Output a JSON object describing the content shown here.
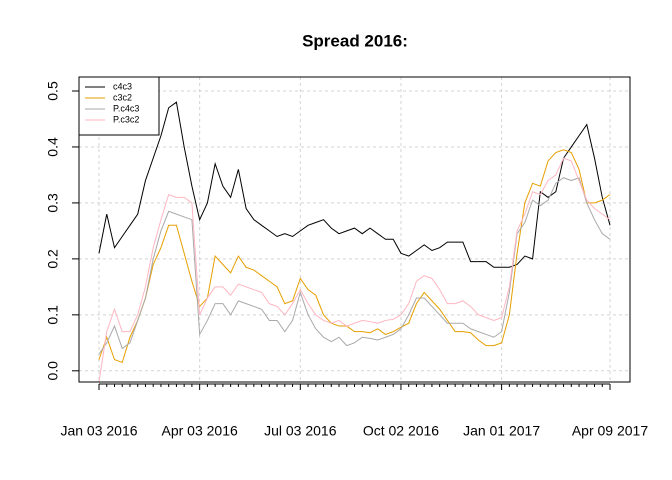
{
  "chart_data": {
    "type": "line",
    "title": "Spread 2016:",
    "categories": [
      "Jan 03 2016",
      null,
      null,
      null,
      null,
      null,
      null,
      null,
      null,
      null,
      null,
      null,
      null,
      "Apr 03 2016",
      null,
      null,
      null,
      null,
      null,
      null,
      null,
      null,
      null,
      null,
      null,
      null,
      "Jul 03 2016",
      null,
      null,
      null,
      null,
      null,
      null,
      null,
      null,
      null,
      null,
      null,
      null,
      "Oct 02 2016",
      null,
      null,
      null,
      null,
      null,
      null,
      null,
      null,
      null,
      null,
      null,
      null,
      "Jan 01 2017",
      null,
      null,
      null,
      null,
      null,
      null,
      null,
      null,
      null,
      null,
      null,
      null,
      null,
      "Apr 09 2017"
    ],
    "series": [
      {
        "name": "c4c3",
        "color": "#000000",
        "values": [
          0.21,
          0.28,
          0.22,
          0.24,
          0.26,
          0.28,
          0.34,
          0.38,
          0.42,
          0.47,
          0.48,
          0.4,
          0.33,
          0.27,
          0.3,
          0.37,
          0.33,
          0.31,
          0.36,
          0.29,
          0.27,
          0.26,
          0.25,
          0.24,
          0.245,
          0.24,
          0.25,
          0.26,
          0.265,
          0.27,
          0.255,
          0.245,
          0.25,
          0.255,
          0.245,
          0.255,
          0.245,
          0.235,
          0.235,
          0.21,
          0.205,
          0.215,
          0.225,
          0.215,
          0.22,
          0.23,
          0.23,
          0.23,
          0.195,
          0.195,
          0.195,
          0.185,
          0.185,
          0.185,
          0.19,
          0.205,
          0.2,
          0.32,
          0.31,
          0.32,
          0.38,
          0.4,
          0.42,
          0.44,
          0.38,
          0.31,
          0.26
        ]
      },
      {
        "name": "c3c2",
        "color": "#e69f00",
        "values": [
          0.02,
          0.06,
          0.02,
          0.015,
          0.06,
          0.09,
          0.13,
          0.19,
          0.22,
          0.26,
          0.26,
          0.21,
          0.16,
          0.115,
          0.13,
          0.205,
          0.19,
          0.175,
          0.205,
          0.185,
          0.18,
          0.17,
          0.16,
          0.15,
          0.12,
          0.125,
          0.165,
          0.145,
          0.135,
          0.1,
          0.085,
          0.08,
          0.08,
          0.07,
          0.07,
          0.068,
          0.075,
          0.065,
          0.07,
          0.078,
          0.085,
          0.12,
          0.14,
          0.125,
          0.11,
          0.09,
          0.07,
          0.07,
          0.068,
          0.055,
          0.045,
          0.045,
          0.05,
          0.1,
          0.21,
          0.3,
          0.335,
          0.33,
          0.375,
          0.39,
          0.395,
          0.39,
          0.36,
          0.3,
          0.3,
          0.305,
          0.315
        ]
      },
      {
        "name": "P.c4c3",
        "color": "#a9a9a9",
        "values": [
          0.03,
          0.05,
          0.08,
          0.04,
          0.05,
          0.09,
          0.13,
          0.2,
          0.25,
          0.285,
          0.28,
          0.275,
          0.27,
          0.065,
          0.09,
          0.12,
          0.12,
          0.1,
          0.125,
          0.12,
          0.115,
          0.11,
          0.09,
          0.09,
          0.07,
          0.09,
          0.14,
          0.1,
          0.075,
          0.06,
          0.052,
          0.06,
          0.045,
          0.05,
          0.06,
          0.058,
          0.055,
          0.06,
          0.065,
          0.075,
          0.1,
          0.13,
          0.13,
          0.115,
          0.1,
          0.085,
          0.085,
          0.085,
          0.075,
          0.07,
          0.065,
          0.06,
          0.07,
          0.14,
          0.245,
          0.265,
          0.305,
          0.295,
          0.305,
          0.335,
          0.345,
          0.34,
          0.345,
          0.3,
          0.27,
          0.245,
          0.235
        ]
      },
      {
        "name": "P.c3c2",
        "color": "#ffb6c1",
        "values": [
          -0.02,
          0.07,
          0.11,
          0.07,
          0.07,
          0.1,
          0.15,
          0.22,
          0.27,
          0.315,
          0.31,
          0.31,
          0.3,
          0.1,
          0.13,
          0.15,
          0.15,
          0.135,
          0.155,
          0.15,
          0.145,
          0.14,
          0.12,
          0.115,
          0.1,
          0.12,
          0.145,
          0.12,
          0.1,
          0.09,
          0.085,
          0.09,
          0.08,
          0.085,
          0.09,
          0.088,
          0.085,
          0.09,
          0.092,
          0.1,
          0.12,
          0.16,
          0.17,
          0.165,
          0.145,
          0.12,
          0.12,
          0.125,
          0.115,
          0.1,
          0.095,
          0.09,
          0.095,
          0.15,
          0.25,
          0.28,
          0.32,
          0.315,
          0.34,
          0.35,
          0.38,
          0.375,
          0.34,
          0.305,
          0.29,
          0.28,
          0.27
        ]
      }
    ],
    "ylim": [
      -0.02,
      0.525
    ],
    "yticks": [
      {
        "value": 0,
        "label": "0.0"
      },
      0.1,
      0.2,
      0.3,
      0.4,
      0.5
    ],
    "grid": true,
    "legend": "top-left"
  }
}
